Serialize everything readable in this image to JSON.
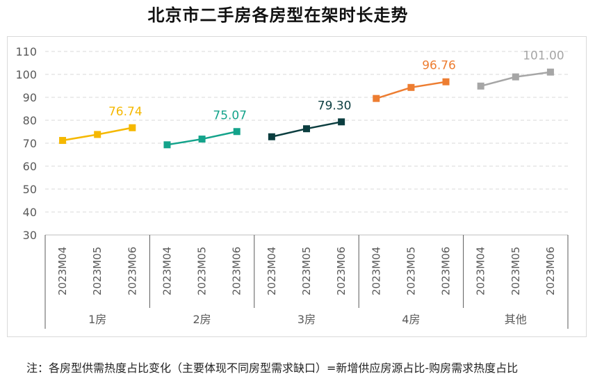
{
  "title": "北京市二手房各房型在架时长走势",
  "note": "注：各房型供需热度占比变化（主要体现不同房型需求缺口）=新增供应房源占比-购房需求热度占比",
  "chart_data": {
    "type": "line",
    "title": "北京市二手房各房型在架时长走势",
    "ylim": [
      30,
      110
    ],
    "yticks": [
      30,
      40,
      50,
      60,
      70,
      80,
      90,
      100,
      110
    ],
    "grid": true,
    "groups": [
      {
        "name": "1房",
        "color": "#F5B800",
        "categories": [
          "2023M04",
          "2023M05",
          "2023M06"
        ],
        "values": [
          71.2,
          73.8,
          76.74
        ],
        "label": "76.74"
      },
      {
        "name": "2房",
        "color": "#14A38B",
        "categories": [
          "2023M04",
          "2023M05",
          "2023M06"
        ],
        "values": [
          69.3,
          71.8,
          75.07
        ],
        "label": "75.07"
      },
      {
        "name": "3房",
        "color": "#0B3D3F",
        "categories": [
          "2023M04",
          "2023M05",
          "2023M06"
        ],
        "values": [
          72.8,
          76.3,
          79.3
        ],
        "label": "79.30"
      },
      {
        "name": "4房",
        "color": "#ED7D31",
        "categories": [
          "2023M04",
          "2023M05",
          "2023M06"
        ],
        "values": [
          89.5,
          94.3,
          96.76
        ],
        "label": "96.76"
      },
      {
        "name": "其他",
        "color": "#A6A6A6",
        "categories": [
          "2023M04",
          "2023M05",
          "2023M06"
        ],
        "values": [
          94.9,
          98.9,
          101.0
        ],
        "label": "101.00"
      }
    ]
  }
}
